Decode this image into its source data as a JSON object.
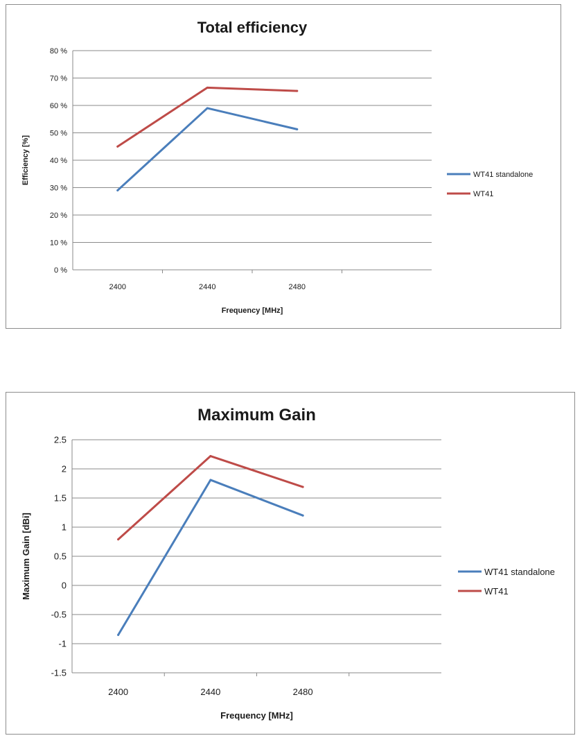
{
  "chart_data": [
    {
      "type": "line",
      "title": "Total efficiency",
      "xlabel": "Frequency [MHz]",
      "ylabel": "Efficiency [%]",
      "categories": [
        "2400",
        "2440",
        "2480"
      ],
      "y_ticks": [
        "0 %",
        "10 %",
        "20 %",
        "30 %",
        "40 %",
        "50 %",
        "60 %",
        "70 %",
        "80 %"
      ],
      "ylim": [
        0,
        80
      ],
      "grid": true,
      "legend_position": "right",
      "series": [
        {
          "name": "WT41 standalone",
          "color": "#4a7ebb",
          "values": [
            29,
            59,
            51.3
          ]
        },
        {
          "name": "WT41",
          "color": "#be4b48",
          "values": [
            45,
            66.5,
            65.3
          ]
        }
      ]
    },
    {
      "type": "line",
      "title": "Maximum Gain",
      "xlabel": "Frequency [MHz]",
      "ylabel": "Maximum Gain [dBi]",
      "categories": [
        "2400",
        "2440",
        "2480"
      ],
      "y_ticks": [
        "-1.5",
        "-1",
        "-0.5",
        "0",
        "0.5",
        "1",
        "1.5",
        "2",
        "2.5"
      ],
      "ylim": [
        -1.5,
        2.5
      ],
      "grid": true,
      "legend_position": "right",
      "series": [
        {
          "name": "WT41 standalone",
          "color": "#4a7ebb",
          "values": [
            -0.85,
            1.81,
            1.2
          ]
        },
        {
          "name": "WT41",
          "color": "#be4b48",
          "values": [
            0.79,
            2.22,
            1.69
          ]
        }
      ]
    }
  ]
}
